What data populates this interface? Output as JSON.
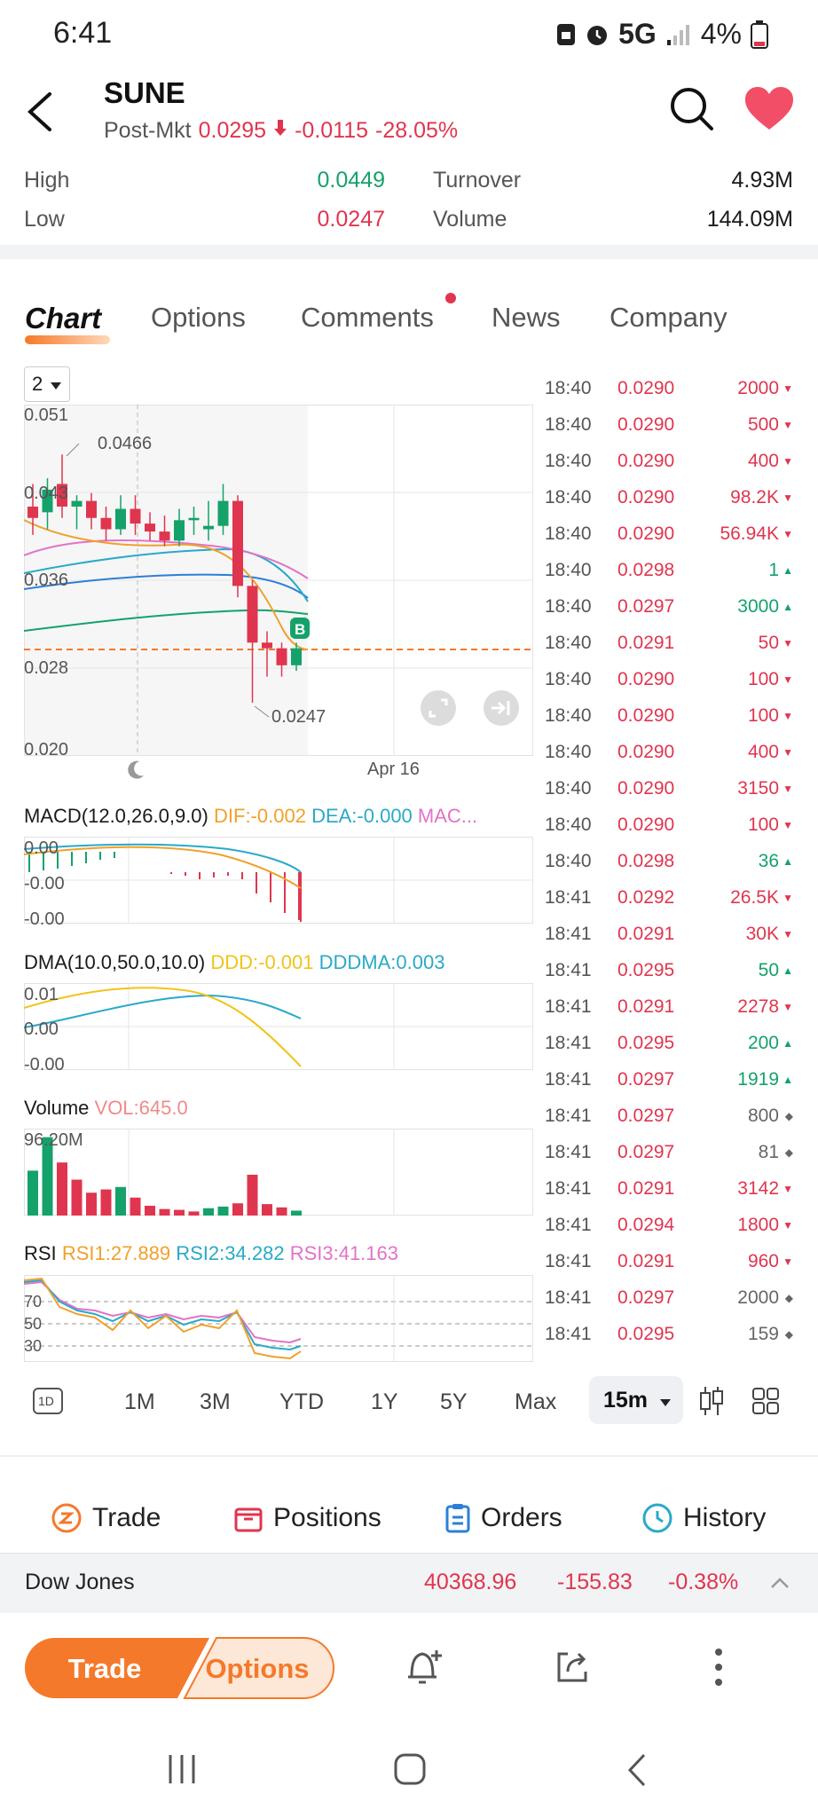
{
  "status": {
    "time": "6:41",
    "network": "5G",
    "battery": "4%"
  },
  "header": {
    "ticker": "SUNE",
    "post_label": "Post-Mkt",
    "post_price": "0.0295",
    "post_change": "-0.0115",
    "post_pct": "-28.05%"
  },
  "stats": {
    "high_label": "High",
    "high": "0.0449",
    "low_label": "Low",
    "low": "0.0247",
    "turnover_label": "Turnover",
    "turnover": "4.93M",
    "volume_label": "Volume",
    "volume": "144.09M"
  },
  "tabs": [
    "Chart",
    "Options",
    "Comments",
    "News",
    "Company"
  ],
  "chart": {
    "period": "2",
    "y_labels": [
      "0.051",
      "0.043",
      "0.036",
      "0.028",
      "0.020"
    ],
    "max_annot": "0.0466",
    "min_annot": "0.0247",
    "date_label": "Apr 16",
    "buy_marker": "B",
    "macd": {
      "title": "MACD(12.0,26.0,9.0)",
      "dif": "DIF:-0.002",
      "dea": "DEA:-0.000",
      "mac": "MAC...",
      "y_labels": [
        "0.00",
        "-0.00",
        "-0.00"
      ]
    },
    "dma": {
      "title": "DMA(10.0,50.0,10.0)",
      "ddd": "DDD:-0.001",
      "dddma": "DDDMA:0.003",
      "y_labels": [
        "0.01",
        "0.00",
        "-0.00"
      ]
    },
    "volume": {
      "title": "Volume",
      "vol": "VOL:645.0",
      "y_label": "96.20M"
    },
    "rsi": {
      "title": "RSI",
      "rsi1": "RSI1:27.889",
      "rsi2": "RSI2:34.282",
      "rsi3": "RSI3:41.163",
      "levels": [
        "70",
        "50",
        "30"
      ]
    }
  },
  "chart_data": {
    "type": "candlestick",
    "ylim": [
      0.02,
      0.051
    ],
    "ohlc": [
      [
        0.042,
        0.044,
        0.0395,
        0.041
      ],
      [
        0.0415,
        0.0445,
        0.04,
        0.0435
      ],
      [
        0.044,
        0.0466,
        0.041,
        0.042
      ],
      [
        0.042,
        0.043,
        0.04,
        0.0425
      ],
      [
        0.0425,
        0.0432,
        0.04,
        0.041
      ],
      [
        0.041,
        0.042,
        0.039,
        0.04
      ],
      [
        0.04,
        0.043,
        0.0395,
        0.0418
      ],
      [
        0.0418,
        0.043,
        0.0395,
        0.0405
      ],
      [
        0.0405,
        0.0415,
        0.039,
        0.0398
      ],
      [
        0.0398,
        0.0412,
        0.0385,
        0.039
      ],
      [
        0.039,
        0.0418,
        0.0385,
        0.0408
      ],
      [
        0.0408,
        0.042,
        0.0395,
        0.041
      ],
      [
        0.04,
        0.0425,
        0.039,
        0.0403
      ],
      [
        0.0403,
        0.044,
        0.0395,
        0.0425
      ],
      [
        0.0425,
        0.043,
        0.034,
        0.035
      ],
      [
        0.035,
        0.0355,
        0.0247,
        0.03
      ],
      [
        0.03,
        0.031,
        0.027,
        0.0295
      ],
      [
        0.0295,
        0.03,
        0.027,
        0.028
      ],
      [
        0.028,
        0.03,
        0.0275,
        0.0295
      ]
    ],
    "volume": [
      55,
      96,
      65,
      44,
      28,
      32,
      35,
      22,
      12,
      8,
      7,
      5,
      9,
      11,
      15,
      50,
      14,
      10,
      6
    ],
    "volume_colors": [
      "g",
      "g",
      "r",
      "r",
      "r",
      "r",
      "g",
      "r",
      "r",
      "r",
      "r",
      "r",
      "g",
      "g",
      "r",
      "r",
      "r",
      "r",
      "g"
    ],
    "colors": {
      "up": "#14a26a",
      "down": "#e0354f",
      "price_line": "#f5792a"
    }
  },
  "ticks": [
    {
      "time": "18:40",
      "price": "0.0290",
      "vol": "2000",
      "dir": "down"
    },
    {
      "time": "18:40",
      "price": "0.0290",
      "vol": "500",
      "dir": "down"
    },
    {
      "time": "18:40",
      "price": "0.0290",
      "vol": "400",
      "dir": "down"
    },
    {
      "time": "18:40",
      "price": "0.0290",
      "vol": "98.2K",
      "dir": "down"
    },
    {
      "time": "18:40",
      "price": "0.0290",
      "vol": "56.94K",
      "dir": "down"
    },
    {
      "time": "18:40",
      "price": "0.0298",
      "vol": "1",
      "dir": "up"
    },
    {
      "time": "18:40",
      "price": "0.0297",
      "vol": "3000",
      "dir": "up"
    },
    {
      "time": "18:40",
      "price": "0.0291",
      "vol": "50",
      "dir": "down"
    },
    {
      "time": "18:40",
      "price": "0.0290",
      "vol": "100",
      "dir": "down"
    },
    {
      "time": "18:40",
      "price": "0.0290",
      "vol": "100",
      "dir": "down"
    },
    {
      "time": "18:40",
      "price": "0.0290",
      "vol": "400",
      "dir": "down"
    },
    {
      "time": "18:40",
      "price": "0.0290",
      "vol": "3150",
      "dir": "down"
    },
    {
      "time": "18:40",
      "price": "0.0290",
      "vol": "100",
      "dir": "down"
    },
    {
      "time": "18:40",
      "price": "0.0298",
      "vol": "36",
      "dir": "up"
    },
    {
      "time": "18:41",
      "price": "0.0292",
      "vol": "26.5K",
      "dir": "down"
    },
    {
      "time": "18:41",
      "price": "0.0291",
      "vol": "30K",
      "dir": "down"
    },
    {
      "time": "18:41",
      "price": "0.0295",
      "vol": "50",
      "dir": "up"
    },
    {
      "time": "18:41",
      "price": "0.0291",
      "vol": "2278",
      "dir": "down"
    },
    {
      "time": "18:41",
      "price": "0.0295",
      "vol": "200",
      "dir": "up"
    },
    {
      "time": "18:41",
      "price": "0.0297",
      "vol": "1919",
      "dir": "up"
    },
    {
      "time": "18:41",
      "price": "0.0297",
      "vol": "800",
      "dir": "neutral"
    },
    {
      "time": "18:41",
      "price": "0.0297",
      "vol": "81",
      "dir": "neutral"
    },
    {
      "time": "18:41",
      "price": "0.0291",
      "vol": "3142",
      "dir": "down"
    },
    {
      "time": "18:41",
      "price": "0.0294",
      "vol": "1800",
      "dir": "down"
    },
    {
      "time": "18:41",
      "price": "0.0291",
      "vol": "960",
      "dir": "down"
    },
    {
      "time": "18:41",
      "price": "0.0297",
      "vol": "2000",
      "dir": "neutral"
    },
    {
      "time": "18:41",
      "price": "0.0295",
      "vol": "159",
      "dir": "neutral"
    }
  ],
  "ranges": {
    "d1": "1D",
    "m1": "1M",
    "m3": "3M",
    "ytd": "YTD",
    "y1": "1Y",
    "y5": "5Y",
    "max": "Max",
    "interval": "15m"
  },
  "actions": {
    "trade": "Trade",
    "positions": "Positions",
    "orders": "Orders",
    "history": "History"
  },
  "index": {
    "name": "Dow Jones",
    "value": "40368.96",
    "change": "-155.83",
    "pct": "-0.38%"
  },
  "bottom": {
    "trade": "Trade",
    "options": "Options"
  }
}
